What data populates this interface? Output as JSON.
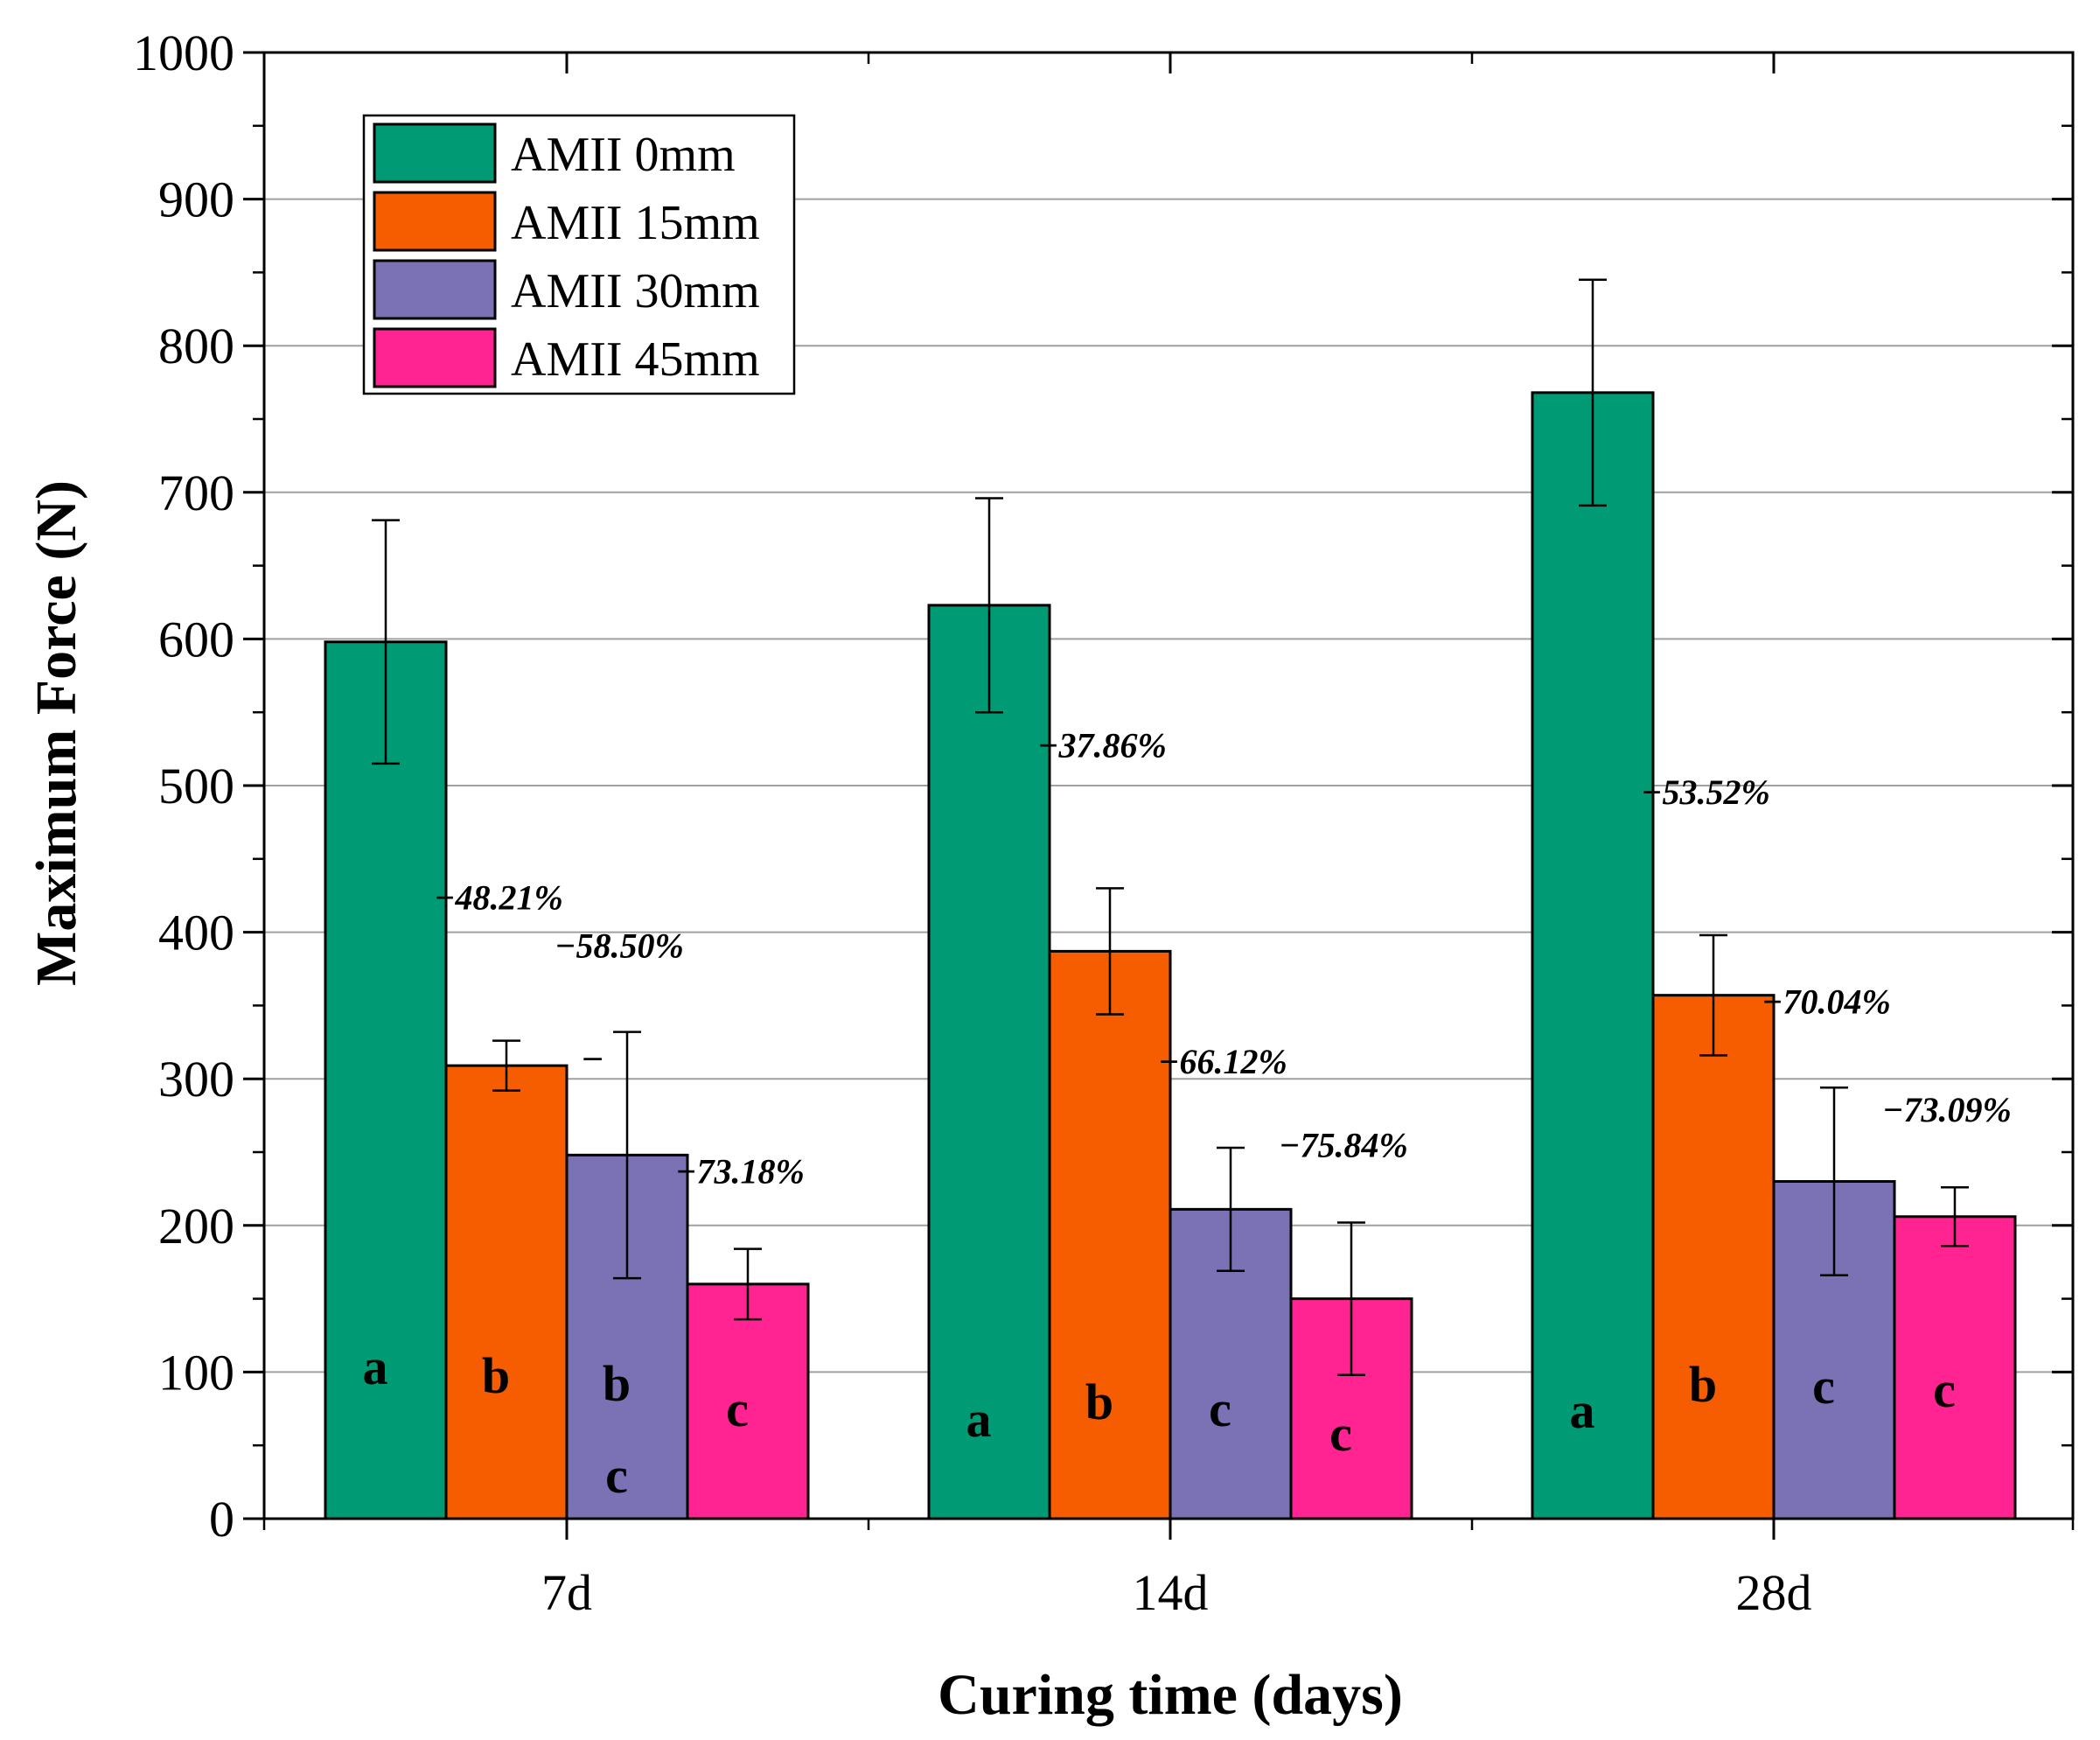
{
  "chart_data": {
    "type": "bar",
    "title": "",
    "xlabel": "Curing time (days)",
    "ylabel": "Maximum Force (N)",
    "ylim": [
      0,
      1000
    ],
    "yticks": [
      0,
      100,
      200,
      300,
      400,
      500,
      600,
      700,
      800,
      900,
      1000
    ],
    "ytick_labels": [
      "0",
      "100",
      "200",
      "300",
      "400",
      "500",
      "600",
      "700",
      "800",
      "900",
      "1000"
    ],
    "grid": true,
    "legend_position": "top-left",
    "categories": [
      "7d",
      "14d",
      "28d"
    ],
    "series": [
      {
        "name": "AMII 0mm",
        "color": "#009B74",
        "values": [
          598,
          623,
          768
        ],
        "error": [
          83,
          73,
          77
        ],
        "letters": [
          "a",
          "a",
          "a"
        ],
        "percent_labels": [
          "",
          "",
          ""
        ]
      },
      {
        "name": "AMII 15mm",
        "color": "#F55D00",
        "values": [
          309,
          387,
          357
        ],
        "error": [
          17,
          43,
          41
        ],
        "letters": [
          "b",
          "b",
          "b"
        ],
        "percent_labels": [
          "−48.21%",
          "−37.86%",
          "−53.52%"
        ]
      },
      {
        "name": "AMII 30mm",
        "color": "#7A72B5",
        "values": [
          248,
          211,
          230
        ],
        "error": [
          84,
          42,
          64
        ],
        "letters": [
          "b",
          "c",
          "c"
        ],
        "letters_second": [
          "c",
          "",
          ""
        ],
        "percent_labels": [
          "−58.50%",
          "−66.12%",
          "−70.04%"
        ]
      },
      {
        "name": "AMII 45mm",
        "color": "#FF2492",
        "values": [
          160,
          150,
          206
        ],
        "error": [
          24,
          52,
          20
        ],
        "letters": [
          "c",
          "c",
          "c"
        ],
        "percent_labels": [
          "−73.18%",
          "−75.84%",
          "−73.09%"
        ]
      }
    ],
    "annotations": [
      "–"
    ]
  }
}
